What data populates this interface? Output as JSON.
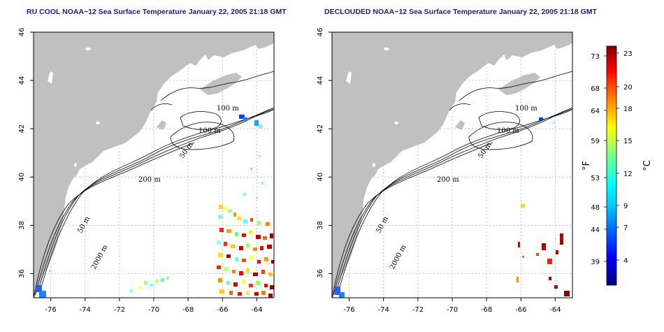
{
  "panels": [
    {
      "id": "left",
      "title": "RU COOL NOAA−12 Sea Surface Temperature January 22, 2005 21:18 GMT",
      "contour_labels": {
        "c100_north": "100 m",
        "c100_center": "100 m",
        "c50_center": "50 m",
        "c200": "200 m",
        "c50_shelf": "50 m",
        "c2000": "2000 m"
      }
    },
    {
      "id": "right",
      "title": "DECLOUDED NOAA−12 Sea Surface Temperature January 22, 2005 21:18 GMT",
      "contour_labels": {
        "c100_north": "100 m",
        "c100_center": "100 m",
        "c50_center": "50 m",
        "c200": "200 m",
        "c50_shelf": "50 m",
        "c2000": "2000 m"
      }
    }
  ],
  "axes": {
    "x_ticks": [
      "-76",
      "-74",
      "-72",
      "-70",
      "-68",
      "-66",
      "-64"
    ],
    "y_ticks": [
      "46",
      "44",
      "42",
      "40",
      "38",
      "36"
    ],
    "lon_range": [
      -77.0,
      -63.0
    ],
    "lat_range": [
      35.0,
      46.0
    ],
    "grid": true
  },
  "colorbar": {
    "f_ticks": [
      "73",
      "68",
      "64",
      "59",
      "53",
      "48",
      "44",
      "39"
    ],
    "c_ticks": [
      "23",
      "20",
      "18",
      "15",
      "12",
      "9",
      "7",
      "4"
    ],
    "f_label": "°F",
    "c_label": "°C",
    "colors": [
      "#000080",
      "#0000ff",
      "#00bfff",
      "#00ffff",
      "#80ff80",
      "#ffff00",
      "#ff8000",
      "#ff0000",
      "#800000"
    ]
  },
  "colors": {
    "land": "#c0c0c0",
    "title": "#1a1a8c",
    "grid": "#b4b4b4"
  }
}
